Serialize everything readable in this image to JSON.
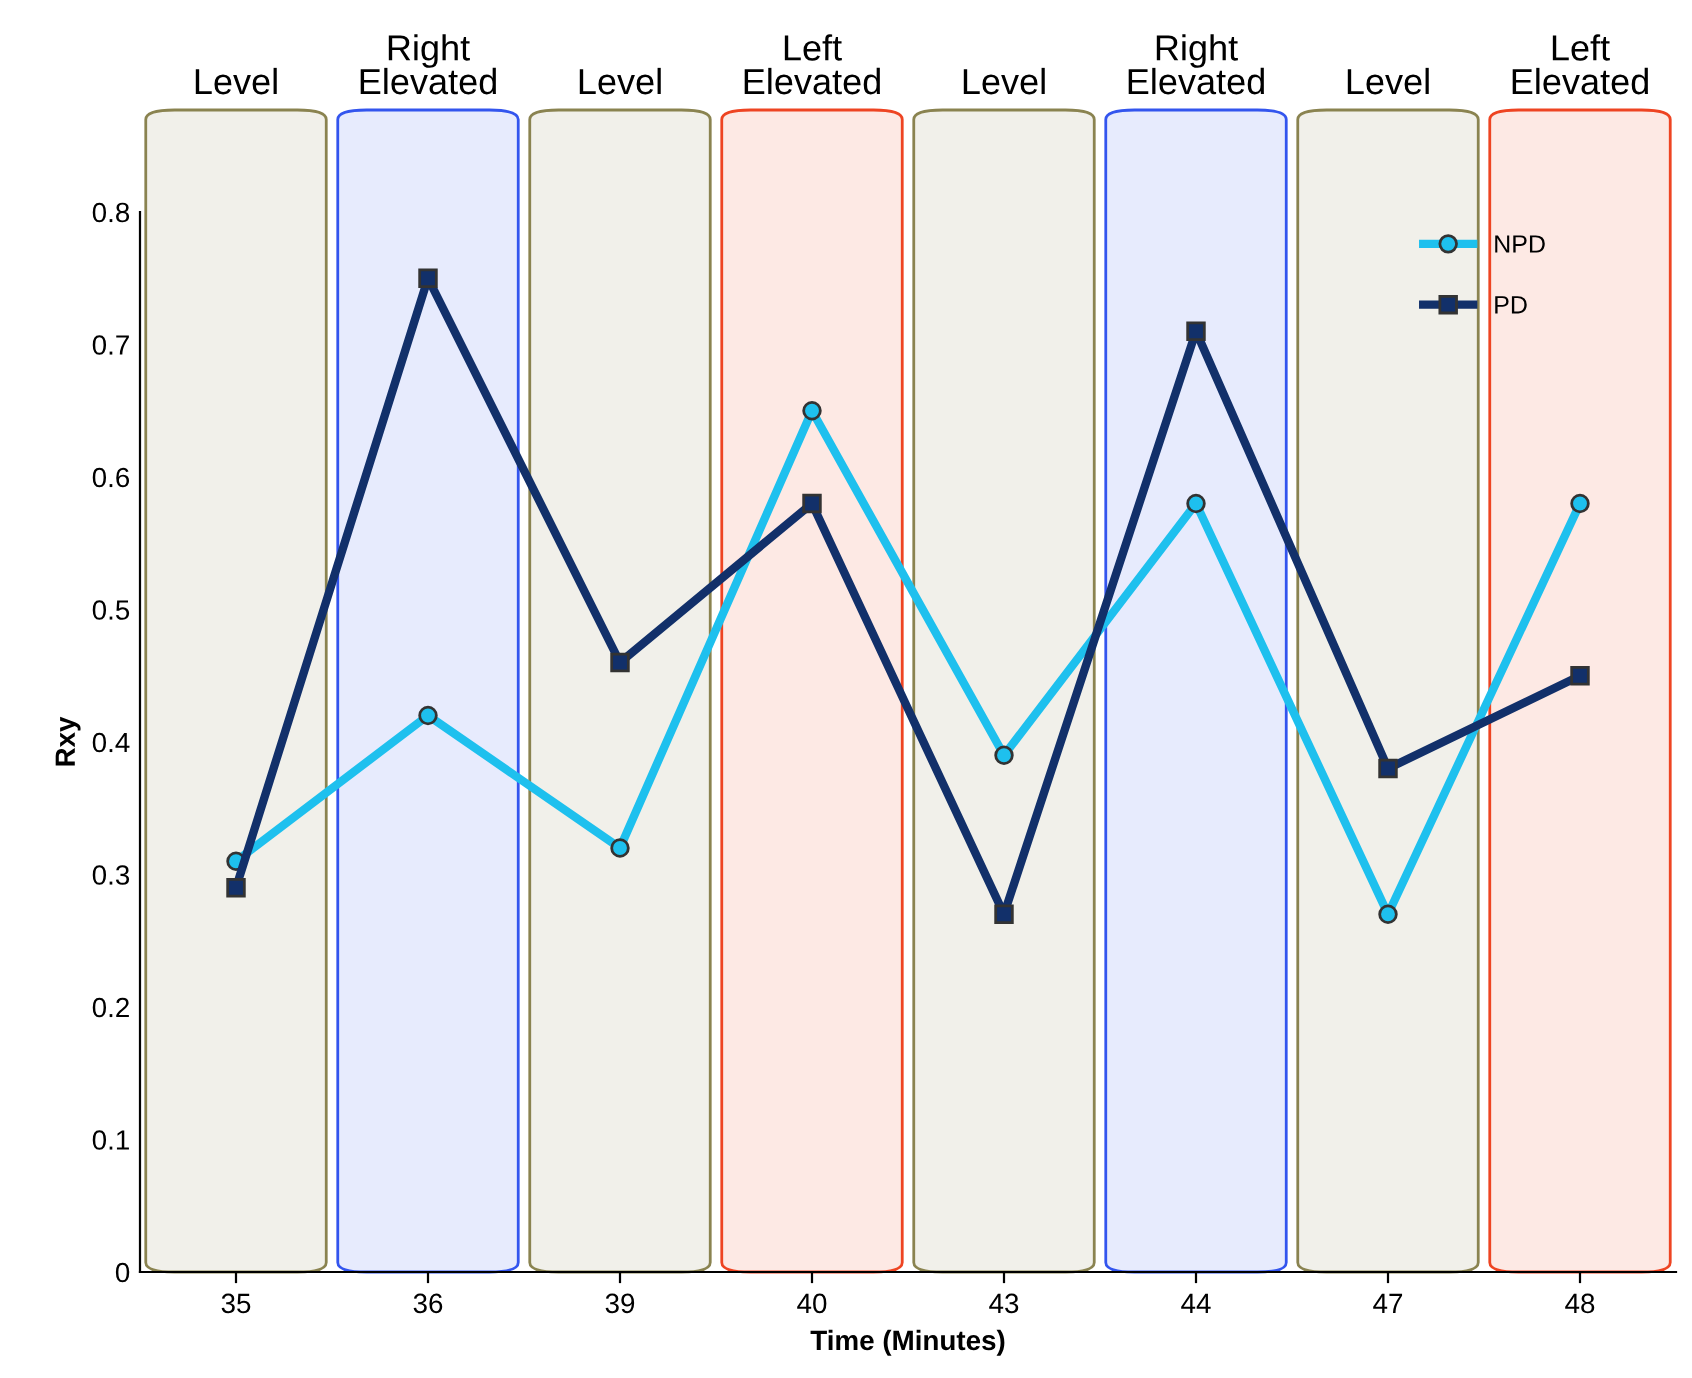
{
  "chart_data": {
    "type": "line",
    "xlabel": "Time (Minutes)",
    "ylabel": "Rxy",
    "categories": [
      "35",
      "36",
      "39",
      "40",
      "43",
      "44",
      "47",
      "48"
    ],
    "series": [
      {
        "name": "NPD",
        "color": "#1ec0ee",
        "marker": "circle",
        "values": [
          0.31,
          0.42,
          0.32,
          0.65,
          0.39,
          0.58,
          0.27,
          0.58
        ]
      },
      {
        "name": "PD",
        "color": "#12306a",
        "marker": "square",
        "values": [
          0.29,
          0.75,
          0.46,
          0.58,
          0.27,
          0.71,
          0.38,
          0.45
        ]
      }
    ],
    "ylim": [
      0,
      0.8
    ],
    "yticks": [
      0,
      0.1,
      0.2,
      0.3,
      0.4,
      0.5,
      0.6,
      0.7,
      0.8
    ],
    "bands": [
      {
        "axis": "x",
        "from": "35",
        "to": "35",
        "label": "Level",
        "color": "#8a8350"
      },
      {
        "axis": "x",
        "from": "36",
        "to": "36",
        "label": "Right\nElevated",
        "color": "#3355ee"
      },
      {
        "axis": "x",
        "from": "39",
        "to": "39",
        "label": "Level",
        "color": "#8a8350"
      },
      {
        "axis": "x",
        "from": "40",
        "to": "40",
        "label": "Left\nElevated",
        "color": "#ee4422"
      },
      {
        "axis": "x",
        "from": "43",
        "to": "43",
        "label": "Level",
        "color": "#8a8350"
      },
      {
        "axis": "x",
        "from": "44",
        "to": "44",
        "label": "Right\nElevated",
        "color": "#3355ee"
      },
      {
        "axis": "x",
        "from": "47",
        "to": "47",
        "label": "Level",
        "color": "#8a8350"
      },
      {
        "axis": "x",
        "from": "48",
        "to": "48",
        "label": "Left\nElevated",
        "color": "#ee4422"
      }
    ],
    "grid": false,
    "legend": "top right",
    "line_style": "solid"
  }
}
